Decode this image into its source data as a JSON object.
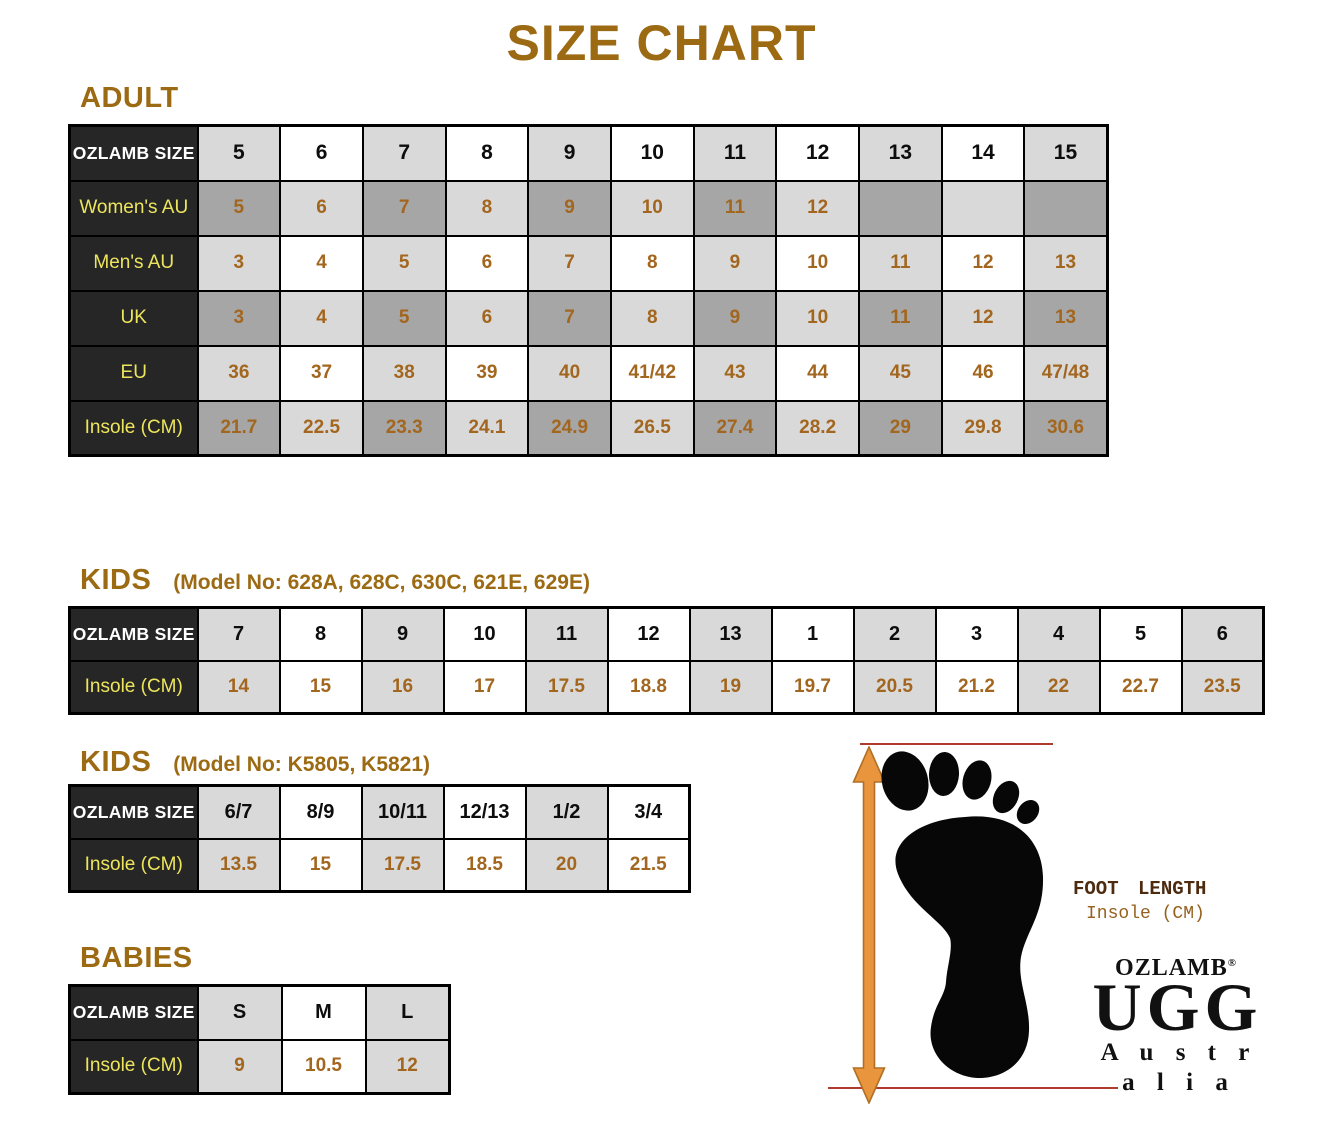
{
  "title": "SIZE CHART",
  "colors": {
    "heading_brown": "#9C6A12",
    "value_brown": "#A3661E",
    "label_yellow": "#EDE55C",
    "header_bg": "#262626",
    "cell_light": "#D9D9D9",
    "cell_dark": "#A6A6A6",
    "arrow_orange": "#E8953D",
    "line_red": "#AE3B2D"
  },
  "sections": {
    "adult": {
      "heading": "ADULT",
      "corner_label": "OZLAMB SIZE",
      "header_sizes": [
        "5",
        "6",
        "7",
        "8",
        "9",
        "10",
        "11",
        "12",
        "13",
        "14",
        "15"
      ],
      "rows": [
        {
          "label": "Women's AU",
          "values": [
            "5",
            "6",
            "7",
            "8",
            "9",
            "10",
            "11",
            "12",
            "",
            "",
            ""
          ]
        },
        {
          "label": "Men's AU",
          "values": [
            "3",
            "4",
            "5",
            "6",
            "7",
            "8",
            "9",
            "10",
            "11",
            "12",
            "13"
          ]
        },
        {
          "label": "UK",
          "values": [
            "3",
            "4",
            "5",
            "6",
            "7",
            "8",
            "9",
            "10",
            "11",
            "12",
            "13"
          ]
        },
        {
          "label": "EU",
          "values": [
            "36",
            "37",
            "38",
            "39",
            "40",
            "41/42",
            "43",
            "44",
            "45",
            "46",
            "47/48"
          ]
        },
        {
          "label": "Insole (CM)",
          "values": [
            "21.7",
            "22.5",
            "23.3",
            "24.1",
            "24.9",
            "26.5",
            "27.4",
            "28.2",
            "29",
            "29.8",
            "30.6"
          ]
        }
      ]
    },
    "kids1": {
      "heading": "KIDS",
      "model_note": "(Model No: 628A, 628C, 630C, 621E, 629E)",
      "corner_label": "OZLAMB SIZE",
      "header_sizes": [
        "7",
        "8",
        "9",
        "10",
        "11",
        "12",
        "13",
        "1",
        "2",
        "3",
        "4",
        "5",
        "6"
      ],
      "rows": [
        {
          "label": "Insole (CM)",
          "values": [
            "14",
            "15",
            "16",
            "17",
            "17.5",
            "18.8",
            "19",
            "19.7",
            "20.5",
            "21.2",
            "22",
            "22.7",
            "23.5"
          ]
        }
      ]
    },
    "kids2": {
      "heading": "KIDS",
      "model_note": "(Model No: K5805, K5821)",
      "corner_label": "OZLAMB SIZE",
      "header_sizes": [
        "6/7",
        "8/9",
        "10/11",
        "12/13",
        "1/2",
        "3/4"
      ],
      "rows": [
        {
          "label": "Insole (CM)",
          "values": [
            "13.5",
            "15",
            "17.5",
            "18.5",
            "20",
            "21.5"
          ]
        }
      ]
    },
    "babies": {
      "heading": "BABIES",
      "corner_label": "OZLAMB SIZE",
      "header_sizes": [
        "S",
        "M",
        "L"
      ],
      "rows": [
        {
          "label": "Insole (CM)",
          "values": [
            "9",
            "10.5",
            "12"
          ]
        }
      ]
    }
  },
  "foot_diagram": {
    "label_line1": "FOOT LENGTH",
    "label_line2": "Insole (CM)",
    "brand_top": "OZLAMB",
    "brand_reg": "®",
    "brand_main": "UGG",
    "brand_sub": "A u s t r a l i a"
  }
}
